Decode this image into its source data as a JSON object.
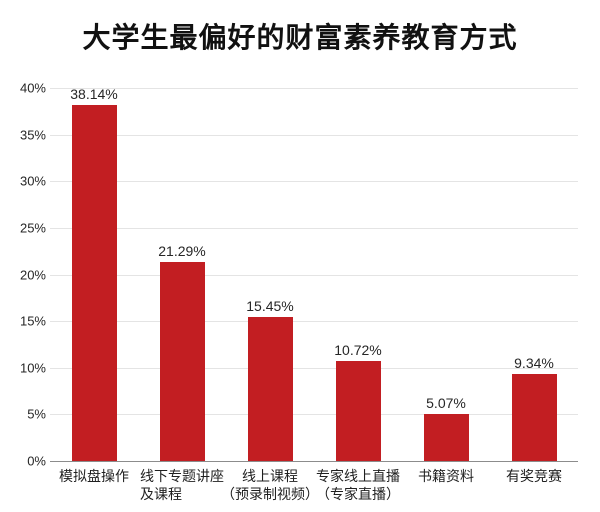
{
  "title": "大学生最偏好的财富素养教育方式",
  "colors": {
    "bar": "#c21e22",
    "grid": "#e4e4e4",
    "axis": "#8c8c8c",
    "text": "#262626",
    "title": "#111111",
    "background": "#ffffff"
  },
  "chart_data": {
    "type": "bar",
    "title": "大学生最偏好的财富素养教育方式",
    "categories": [
      "模拟盘操作",
      "线下专题讲座\n及课程",
      "线上课程\n（预录制视频）",
      "专家线上直播\n（专家直播）",
      "书籍资料",
      "有奖竞赛"
    ],
    "category_align": [
      "center",
      "left",
      "center",
      "center",
      "center",
      "center"
    ],
    "values": [
      38.14,
      21.29,
      15.45,
      10.72,
      5.07,
      9.34
    ],
    "value_labels": [
      "38.14%",
      "21.29%",
      "15.45%",
      "10.72%",
      "5.07%",
      "9.34%"
    ],
    "xlabel": "",
    "ylabel": "",
    "ylim": [
      0,
      40
    ],
    "ytick_step": 5,
    "ytick_labels": [
      "0%",
      "5%",
      "10%",
      "15%",
      "20%",
      "25%",
      "30%",
      "35%",
      "40%"
    ],
    "grid": true,
    "legend": false,
    "bar_color": "#c21e22"
  }
}
